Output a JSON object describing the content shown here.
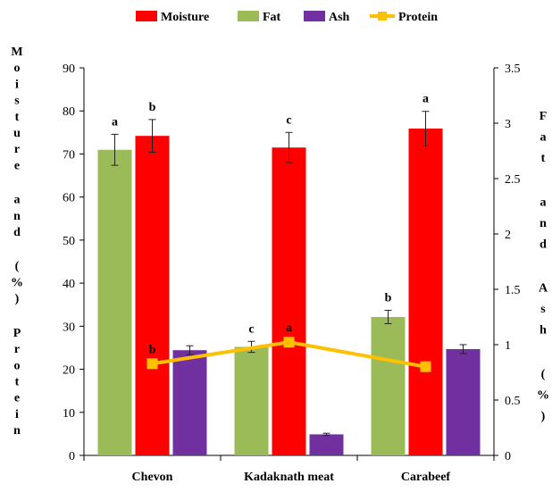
{
  "chart_data": {
    "type": "bar",
    "categories": [
      "Chevon",
      "Kadaknath meat",
      "Carabeef"
    ],
    "series": [
      {
        "name": "Fat",
        "axis": "right",
        "values": [
          2.76,
          0.98,
          1.25
        ],
        "errors": [
          0.14,
          0.05,
          0.06
        ],
        "labels": [
          "a",
          "c",
          "b"
        ],
        "color": "#9BBB59"
      },
      {
        "name": "Moisture",
        "axis": "left",
        "values": [
          74.2,
          71.5,
          75.9
        ],
        "errors": [
          3.8,
          3.5,
          4.0
        ],
        "labels": [
          "b",
          "c",
          "a"
        ],
        "color": "#FF0000"
      },
      {
        "name": "Ash",
        "axis": "right",
        "values": [
          0.95,
          0.19,
          0.96
        ],
        "errors": [
          0.04,
          0.01,
          0.04
        ],
        "labels": [
          "",
          "",
          ""
        ],
        "color": "#7030A0"
      },
      {
        "name": "Protein",
        "axis": "left",
        "type": "line",
        "values": [
          21.3,
          26.3,
          20.6
        ],
        "labels": [
          "b",
          "a",
          ""
        ],
        "color": "#FFC000"
      }
    ],
    "legend": {
      "position": "top",
      "order": [
        "Moisture",
        "Fat",
        "Ash",
        "Protein"
      ]
    },
    "y_left": {
      "label": "Moisture and (%) Protein",
      "lim": [
        0,
        90
      ],
      "ticks": [
        "0",
        "10",
        "20",
        "30",
        "40",
        "50",
        "60",
        "70",
        "80",
        "90"
      ]
    },
    "y_right": {
      "label": "Fat and Ash (%)",
      "lim": [
        0,
        3.5
      ],
      "ticks": [
        "0",
        "0.5",
        "1",
        "1.5",
        "2",
        "2.5",
        "3",
        "3.5"
      ]
    },
    "grid": false
  }
}
